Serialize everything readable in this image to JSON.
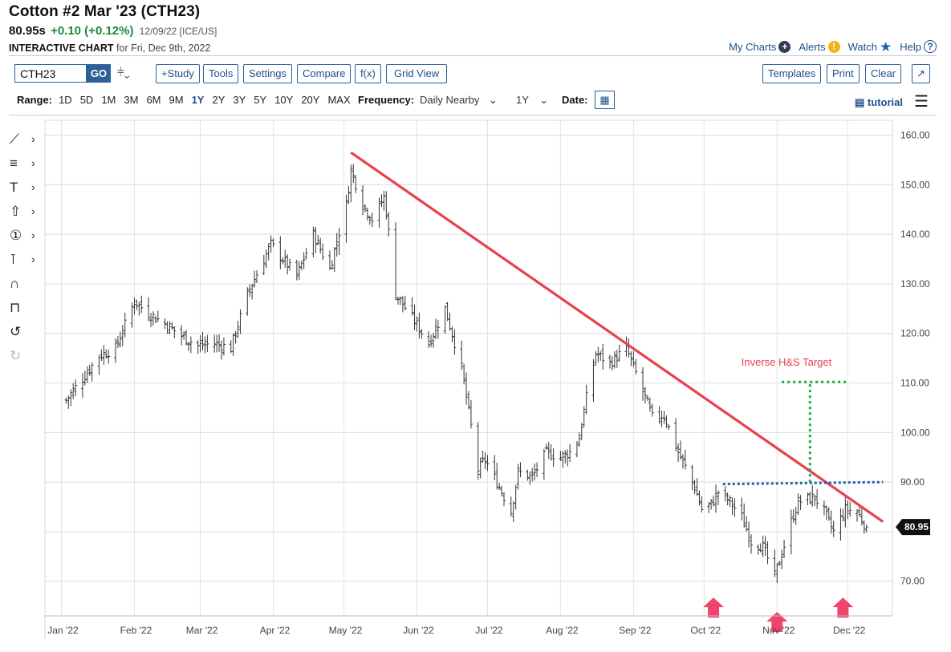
{
  "header": {
    "title": "Cotton #2 Mar '23 (CTH23)",
    "last_price": "80.95s",
    "change": "+0.10 (+0.12%)",
    "date_exchange": "12/09/22 [ICE/US]",
    "chart_label": "INTERACTIVE CHART",
    "chart_for": "for Fri, Dec 9th, 2022"
  },
  "top_links": [
    {
      "label": "My Charts",
      "icon": "plus-circle-icon"
    },
    {
      "label": "Alerts",
      "icon": "alert-icon"
    },
    {
      "label": "Watch",
      "icon": "star-icon"
    },
    {
      "label": "Help",
      "icon": "help-icon"
    }
  ],
  "toolbar": {
    "symbol": "CTH23",
    "go": "GO",
    "study": "+Study",
    "tools": "Tools",
    "settings": "Settings",
    "compare": "Compare",
    "fx": "f(x)",
    "grid_view": "Grid View",
    "templates": "Templates",
    "print": "Print",
    "clear": "Clear",
    "expand_icon": "expand-arrow-icon"
  },
  "range": {
    "label": "Range:",
    "options": [
      "1D",
      "5D",
      "1M",
      "3M",
      "6M",
      "9M",
      "1Y",
      "2Y",
      "3Y",
      "5Y",
      "10Y",
      "20Y",
      "MAX"
    ],
    "selected": "1Y"
  },
  "frequency": {
    "label": "Frequency:",
    "value": "Daily Nearby",
    "period": "1Y"
  },
  "date": {
    "label": "Date:"
  },
  "tutorial": "tutorial",
  "colors": {
    "accent": "#1f4e8c",
    "trendline": "#e8404f",
    "neckline": "#1f5fb0",
    "target": "#1aab3a",
    "arrow": "#f0456a",
    "up": "#1e8a3a"
  },
  "chart_data": {
    "type": "bar",
    "subtype": "ohlc",
    "frequency": "daily",
    "y_ticks": [
      "70.00",
      "80.00",
      "90.00",
      "100.00",
      "110.00",
      "120.00",
      "130.00",
      "140.00",
      "150.00",
      "160.00"
    ],
    "ylim": [
      63,
      163
    ],
    "x_ticks": [
      "Jan '22",
      "Feb '22",
      "Mar '22",
      "Apr '22",
      "May '22",
      "Jun '22",
      "Jul '22",
      "Aug '22",
      "Sep '22",
      "Oct '22",
      "Nov '22",
      "Dec '22"
    ],
    "grid": true,
    "last_value_label": "80.95",
    "close_path": [
      {
        "x": "2022-01-03",
        "y": 106.5
      },
      {
        "x": "2022-01-06",
        "y": 108.5
      },
      {
        "x": "2022-01-11",
        "y": 111.5
      },
      {
        "x": "2022-01-17",
        "y": 115.5
      },
      {
        "x": "2022-01-24",
        "y": 117
      },
      {
        "x": "2022-02-01",
        "y": 126.5
      },
      {
        "x": "2022-02-07",
        "y": 124
      },
      {
        "x": "2022-02-14",
        "y": 122
      },
      {
        "x": "2022-02-21",
        "y": 119.5
      },
      {
        "x": "2022-02-28",
        "y": 117.5
      },
      {
        "x": "2022-03-07",
        "y": 118
      },
      {
        "x": "2022-03-14",
        "y": 117
      },
      {
        "x": "2022-03-21",
        "y": 128
      },
      {
        "x": "2022-03-28",
        "y": 135
      },
      {
        "x": "2022-03-31",
        "y": 138
      },
      {
        "x": "2022-04-05",
        "y": 135
      },
      {
        "x": "2022-04-11",
        "y": 131.5
      },
      {
        "x": "2022-04-18",
        "y": 140
      },
      {
        "x": "2022-04-25",
        "y": 133
      },
      {
        "x": "2022-05-02",
        "y": 146
      },
      {
        "x": "2022-05-04",
        "y": 153
      },
      {
        "x": "2022-05-09",
        "y": 146
      },
      {
        "x": "2022-05-13",
        "y": 143
      },
      {
        "x": "2022-05-18",
        "y": 147.5
      },
      {
        "x": "2022-05-19",
        "y": 144.5
      },
      {
        "x": "2022-05-23",
        "y": 128
      },
      {
        "x": "2022-05-31",
        "y": 122.5
      },
      {
        "x": "2022-06-06",
        "y": 118
      },
      {
        "x": "2022-06-13",
        "y": 125
      },
      {
        "x": "2022-06-20",
        "y": 113
      },
      {
        "x": "2022-06-27",
        "y": 92.5
      },
      {
        "x": "2022-06-30",
        "y": 94.5
      },
      {
        "x": "2022-07-05",
        "y": 90
      },
      {
        "x": "2022-07-11",
        "y": 84
      },
      {
        "x": "2022-07-14",
        "y": 92
      },
      {
        "x": "2022-07-20",
        "y": 91
      },
      {
        "x": "2022-07-26",
        "y": 96
      },
      {
        "x": "2022-08-01",
        "y": 95
      },
      {
        "x": "2022-08-05",
        "y": 96
      },
      {
        "x": "2022-08-09",
        "y": 99
      },
      {
        "x": "2022-08-12",
        "y": 107
      },
      {
        "x": "2022-08-16",
        "y": 116
      },
      {
        "x": "2022-08-22",
        "y": 114
      },
      {
        "x": "2022-08-29",
        "y": 117
      },
      {
        "x": "2022-09-06",
        "y": 107
      },
      {
        "x": "2022-09-09",
        "y": 103
      },
      {
        "x": "2022-09-14",
        "y": 103.5
      },
      {
        "x": "2022-09-20",
        "y": 96
      },
      {
        "x": "2022-09-27",
        "y": 89
      },
      {
        "x": "2022-09-30",
        "y": 84.5
      },
      {
        "x": "2022-10-04",
        "y": 85.5
      },
      {
        "x": "2022-10-07",
        "y": 88
      },
      {
        "x": "2022-10-12",
        "y": 86
      },
      {
        "x": "2022-10-17",
        "y": 83
      },
      {
        "x": "2022-10-21",
        "y": 78
      },
      {
        "x": "2022-10-26",
        "y": 77
      },
      {
        "x": "2022-10-31",
        "y": 71
      },
      {
        "x": "2022-11-02",
        "y": 74
      },
      {
        "x": "2022-11-07",
        "y": 82
      },
      {
        "x": "2022-11-10",
        "y": 86
      },
      {
        "x": "2022-11-17",
        "y": 87
      },
      {
        "x": "2022-11-21",
        "y": 84
      },
      {
        "x": "2022-11-25",
        "y": 80
      },
      {
        "x": "2022-11-30",
        "y": 84.5
      },
      {
        "x": "2022-12-05",
        "y": 84
      },
      {
        "x": "2022-12-09",
        "y": 80.95
      }
    ],
    "annotations": {
      "downtrend_line": {
        "from": {
          "x": "2022-05-04",
          "y": 156.5
        },
        "to": {
          "x": "2022-12-16",
          "y": 82
        }
      },
      "neckline": {
        "from": {
          "x": "2022-10-09",
          "y": 89.6
        },
        "to": {
          "x": "2022-12-16",
          "y": 90
        }
      },
      "target": {
        "label": "Inverse H&S Target",
        "x": "2022-11-15",
        "from_y": 90,
        "to_y": 110.2,
        "end_x": "2022-12-01"
      },
      "arrows": [
        {
          "x": "2022-10-05",
          "y": 66.7
        },
        {
          "x": "2022-11-01",
          "y": 63.8
        },
        {
          "x": "2022-11-29",
          "y": 66.7
        }
      ]
    }
  }
}
